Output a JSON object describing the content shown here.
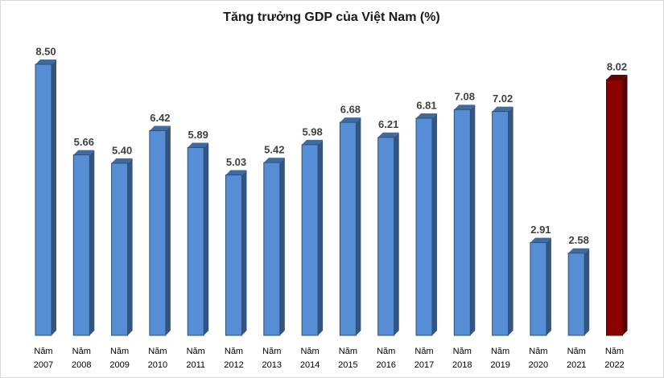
{
  "chart_data": {
    "type": "bar3d",
    "title": "Tăng trưởng GDP của Việt Nam (%)",
    "categories": [
      "Năm 2007",
      "Năm 2008",
      "Năm 2009",
      "Năm 2010",
      "Năm 2011",
      "Năm 2012",
      "Năm 2013",
      "Năm 2014",
      "Năm 2015",
      "Năm 2016",
      "Năm 2017",
      "Năm 2018",
      "Năm 2019",
      "Năm 2020",
      "Năm 2021",
      "Năm 2022"
    ],
    "values": [
      8.5,
      5.66,
      5.4,
      6.42,
      5.89,
      5.03,
      5.42,
      5.98,
      6.68,
      6.21,
      6.81,
      7.08,
      7.02,
      2.91,
      2.58,
      8.02
    ],
    "value_labels": [
      "8.50",
      "5.66",
      "5.40",
      "6.42",
      "5.89",
      "5.03",
      "5.42",
      "5.98",
      "6.68",
      "6.21",
      "6.81",
      "7.08",
      "7.02",
      "2.91",
      "2.58",
      "8.02"
    ],
    "colors": [
      "#558ed5",
      "#558ed5",
      "#558ed5",
      "#558ed5",
      "#558ed5",
      "#558ed5",
      "#558ed5",
      "#558ed5",
      "#558ed5",
      "#558ed5",
      "#558ed5",
      "#558ed5",
      "#558ed5",
      "#558ed5",
      "#558ed5",
      "#8b0000"
    ]
  }
}
